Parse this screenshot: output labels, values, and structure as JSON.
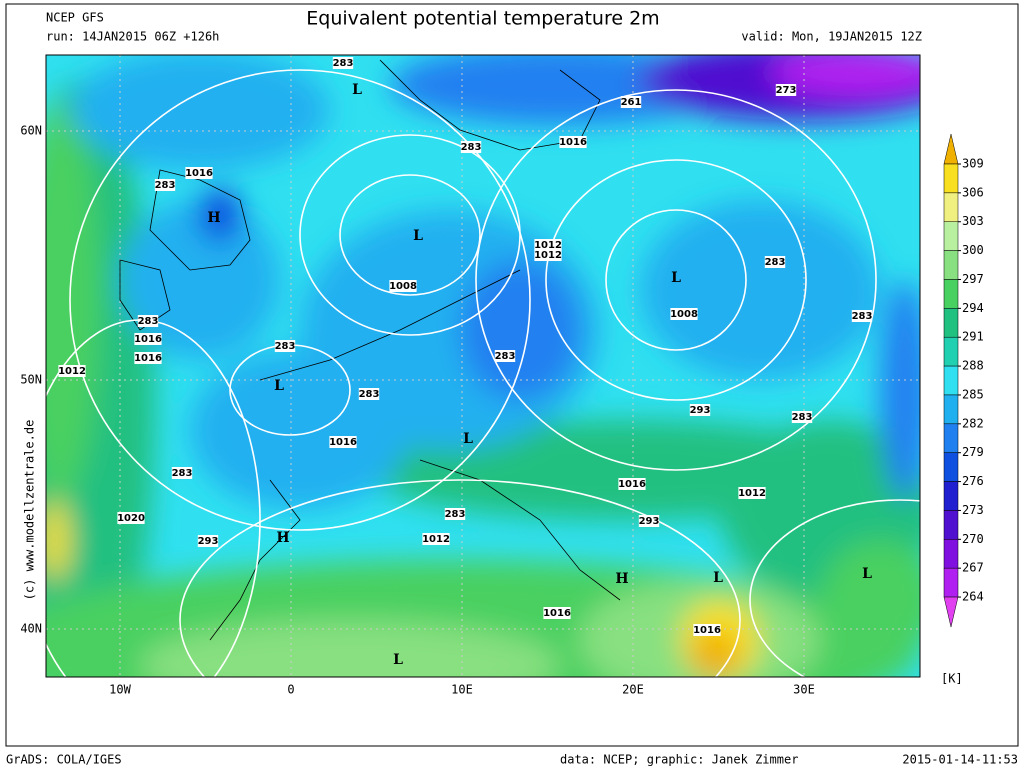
{
  "header": {
    "model": "NCEP GFS",
    "run": "run: 14JAN2015 06Z +126h",
    "title": "Equivalent potential temperature 2m",
    "valid": "valid: Mon, 19JAN2015 12Z"
  },
  "map": {
    "lat_ticks": [
      {
        "value": 60,
        "label": "60N"
      },
      {
        "value": 50,
        "label": "50N"
      },
      {
        "value": 40,
        "label": "40N"
      }
    ],
    "lon_ticks": [
      {
        "value": -10,
        "label": "10W"
      },
      0,
      {
        "value": 10,
        "label": "10E"
      },
      {
        "value": 20,
        "label": "20E"
      },
      {
        "value": 30,
        "label": "30E"
      }
    ],
    "labels": [
      "L",
      "283",
      "261",
      "273",
      "1016",
      "283",
      "1016",
      "283",
      "H",
      "L",
      "1012",
      "1012",
      "L",
      "283",
      "1008",
      "1008",
      "283",
      "1016",
      "1016",
      "283",
      "283",
      "283",
      "1012",
      "L",
      "283",
      "293",
      "283",
      "1016",
      "L",
      "283",
      "1016",
      "1012",
      "1020",
      "293",
      "283",
      "293",
      "H",
      "1012",
      "L",
      "L",
      "H",
      "1016",
      "1016",
      "L"
    ],
    "copyright": "(c) www.modellzentrale.de"
  },
  "colorbar": {
    "unit": "[K]",
    "ticks": [
      309,
      306,
      303,
      300,
      297,
      294,
      291,
      288,
      285,
      282,
      279,
      276,
      273,
      270,
      267,
      264
    ],
    "colors": [
      "#f0b000",
      "#f8e020",
      "#f0f080",
      "#b8f0a0",
      "#88e080",
      "#48d060",
      "#20c080",
      "#20d0b0",
      "#30e0f0",
      "#20b0f0",
      "#2080f0",
      "#1050e0",
      "#2020d0",
      "#5010d0",
      "#8010e0",
      "#b020f0",
      "#e040f0"
    ]
  },
  "footer": {
    "left": "GrADS: COLA/IGES",
    "center": "data: NCEP; graphic: Janek Zimmer",
    "right": "2015-01-14-11:53"
  }
}
